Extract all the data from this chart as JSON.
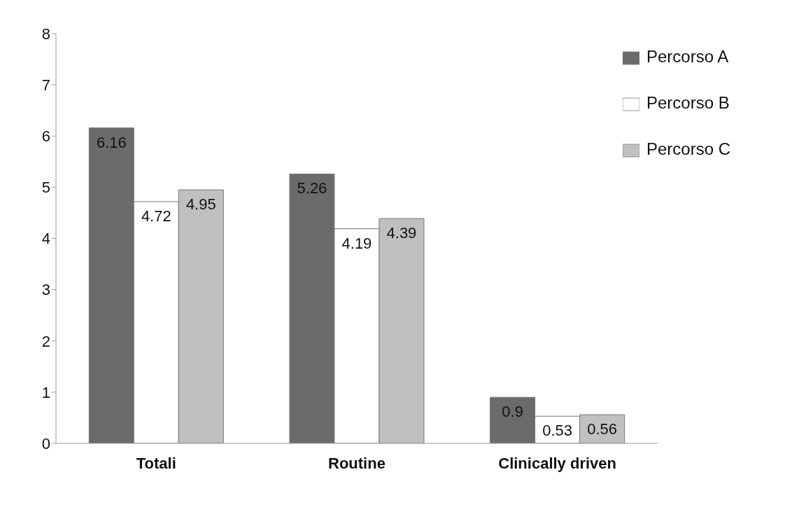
{
  "chart_data": {
    "type": "bar",
    "categories": [
      "Totali",
      "Routine",
      "Clinically driven"
    ],
    "series": [
      {
        "name": "Percorso A",
        "color": "#6b6b6b",
        "values": [
          6.16,
          5.26,
          0.9
        ]
      },
      {
        "name": "Percorso B",
        "color": "#ffffff",
        "values": [
          4.72,
          4.19,
          0.53
        ]
      },
      {
        "name": "Percorso C",
        "color": "#c0c0c0",
        "values": [
          4.95,
          4.39,
          0.56
        ]
      }
    ],
    "ylim": [
      0,
      8
    ],
    "yticks": [
      0,
      1,
      2,
      3,
      4,
      5,
      6,
      7,
      8
    ],
    "grid": false,
    "legend": "top right",
    "data_labels": true
  }
}
